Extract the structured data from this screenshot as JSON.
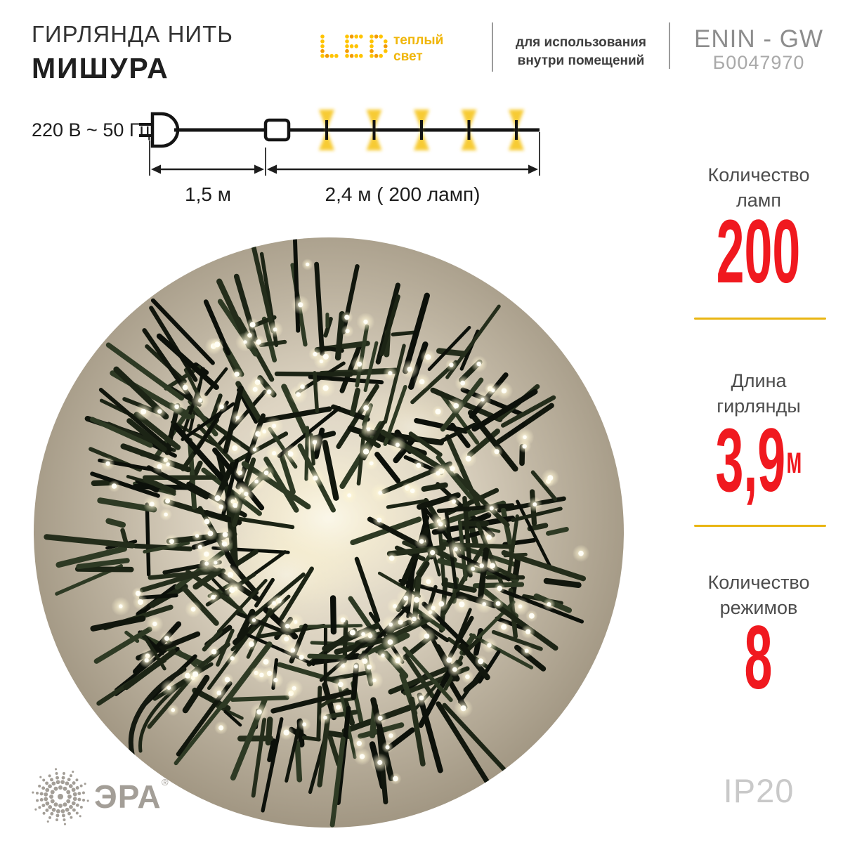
{
  "header": {
    "title_line1": "ГИРЛЯНДА НИТЬ",
    "title_line2": "МИШУРА",
    "led_badge": {
      "text": "LED",
      "caption_line1": "теплый",
      "caption_line2": "свет"
    },
    "usage_line1": "для использования",
    "usage_line2": "внутри помещений",
    "model": "ENIN - GW",
    "sku": "Б0047970"
  },
  "diagram": {
    "voltage": "220 В ~ 50 Гц",
    "lead_length_label": "1,5 м",
    "lit_length_label": "2,4 м ( 200 ламп)",
    "lamp_count": 5
  },
  "specs": [
    {
      "label_line1": "Количество",
      "label_line2": "ламп",
      "value": "200",
      "unit": ""
    },
    {
      "label_line1": "Длина",
      "label_line2": "гирлянды",
      "value": "3,9",
      "unit": "м"
    },
    {
      "label_line1": "Количество",
      "label_line2": "режимов",
      "value": "8",
      "unit": ""
    }
  ],
  "footer": {
    "brand": "ЭРА",
    "brand_mark": "®",
    "ip_rating": "IP20"
  },
  "icons": {
    "led_logo": "led-dot-matrix-logo",
    "plug": "power-plug-icon",
    "controller": "controller-box-icon",
    "lamp": "lamp-glow-icon",
    "brand_logo": "era-starburst-logo"
  },
  "colors": {
    "accent_red": "#f0191f",
    "accent_yellow": "#e9b512",
    "led_dot_yellow": "#ffc400",
    "led_dot_orange": "#f29b00",
    "lamp_glow": "#f6c51c",
    "line_dark": "#1d1d1d",
    "wire_palette": [
      "#11160d",
      "#1c2415",
      "#242d1b",
      "#0c100a",
      "#2e3a24"
    ],
    "photo_bg_center": "#efe8d8",
    "photo_bg_mid": "#cdc4b1",
    "photo_bg_edge": "#9e937f",
    "light_core": "#fffef6",
    "brand_gray": "#a39e97"
  }
}
